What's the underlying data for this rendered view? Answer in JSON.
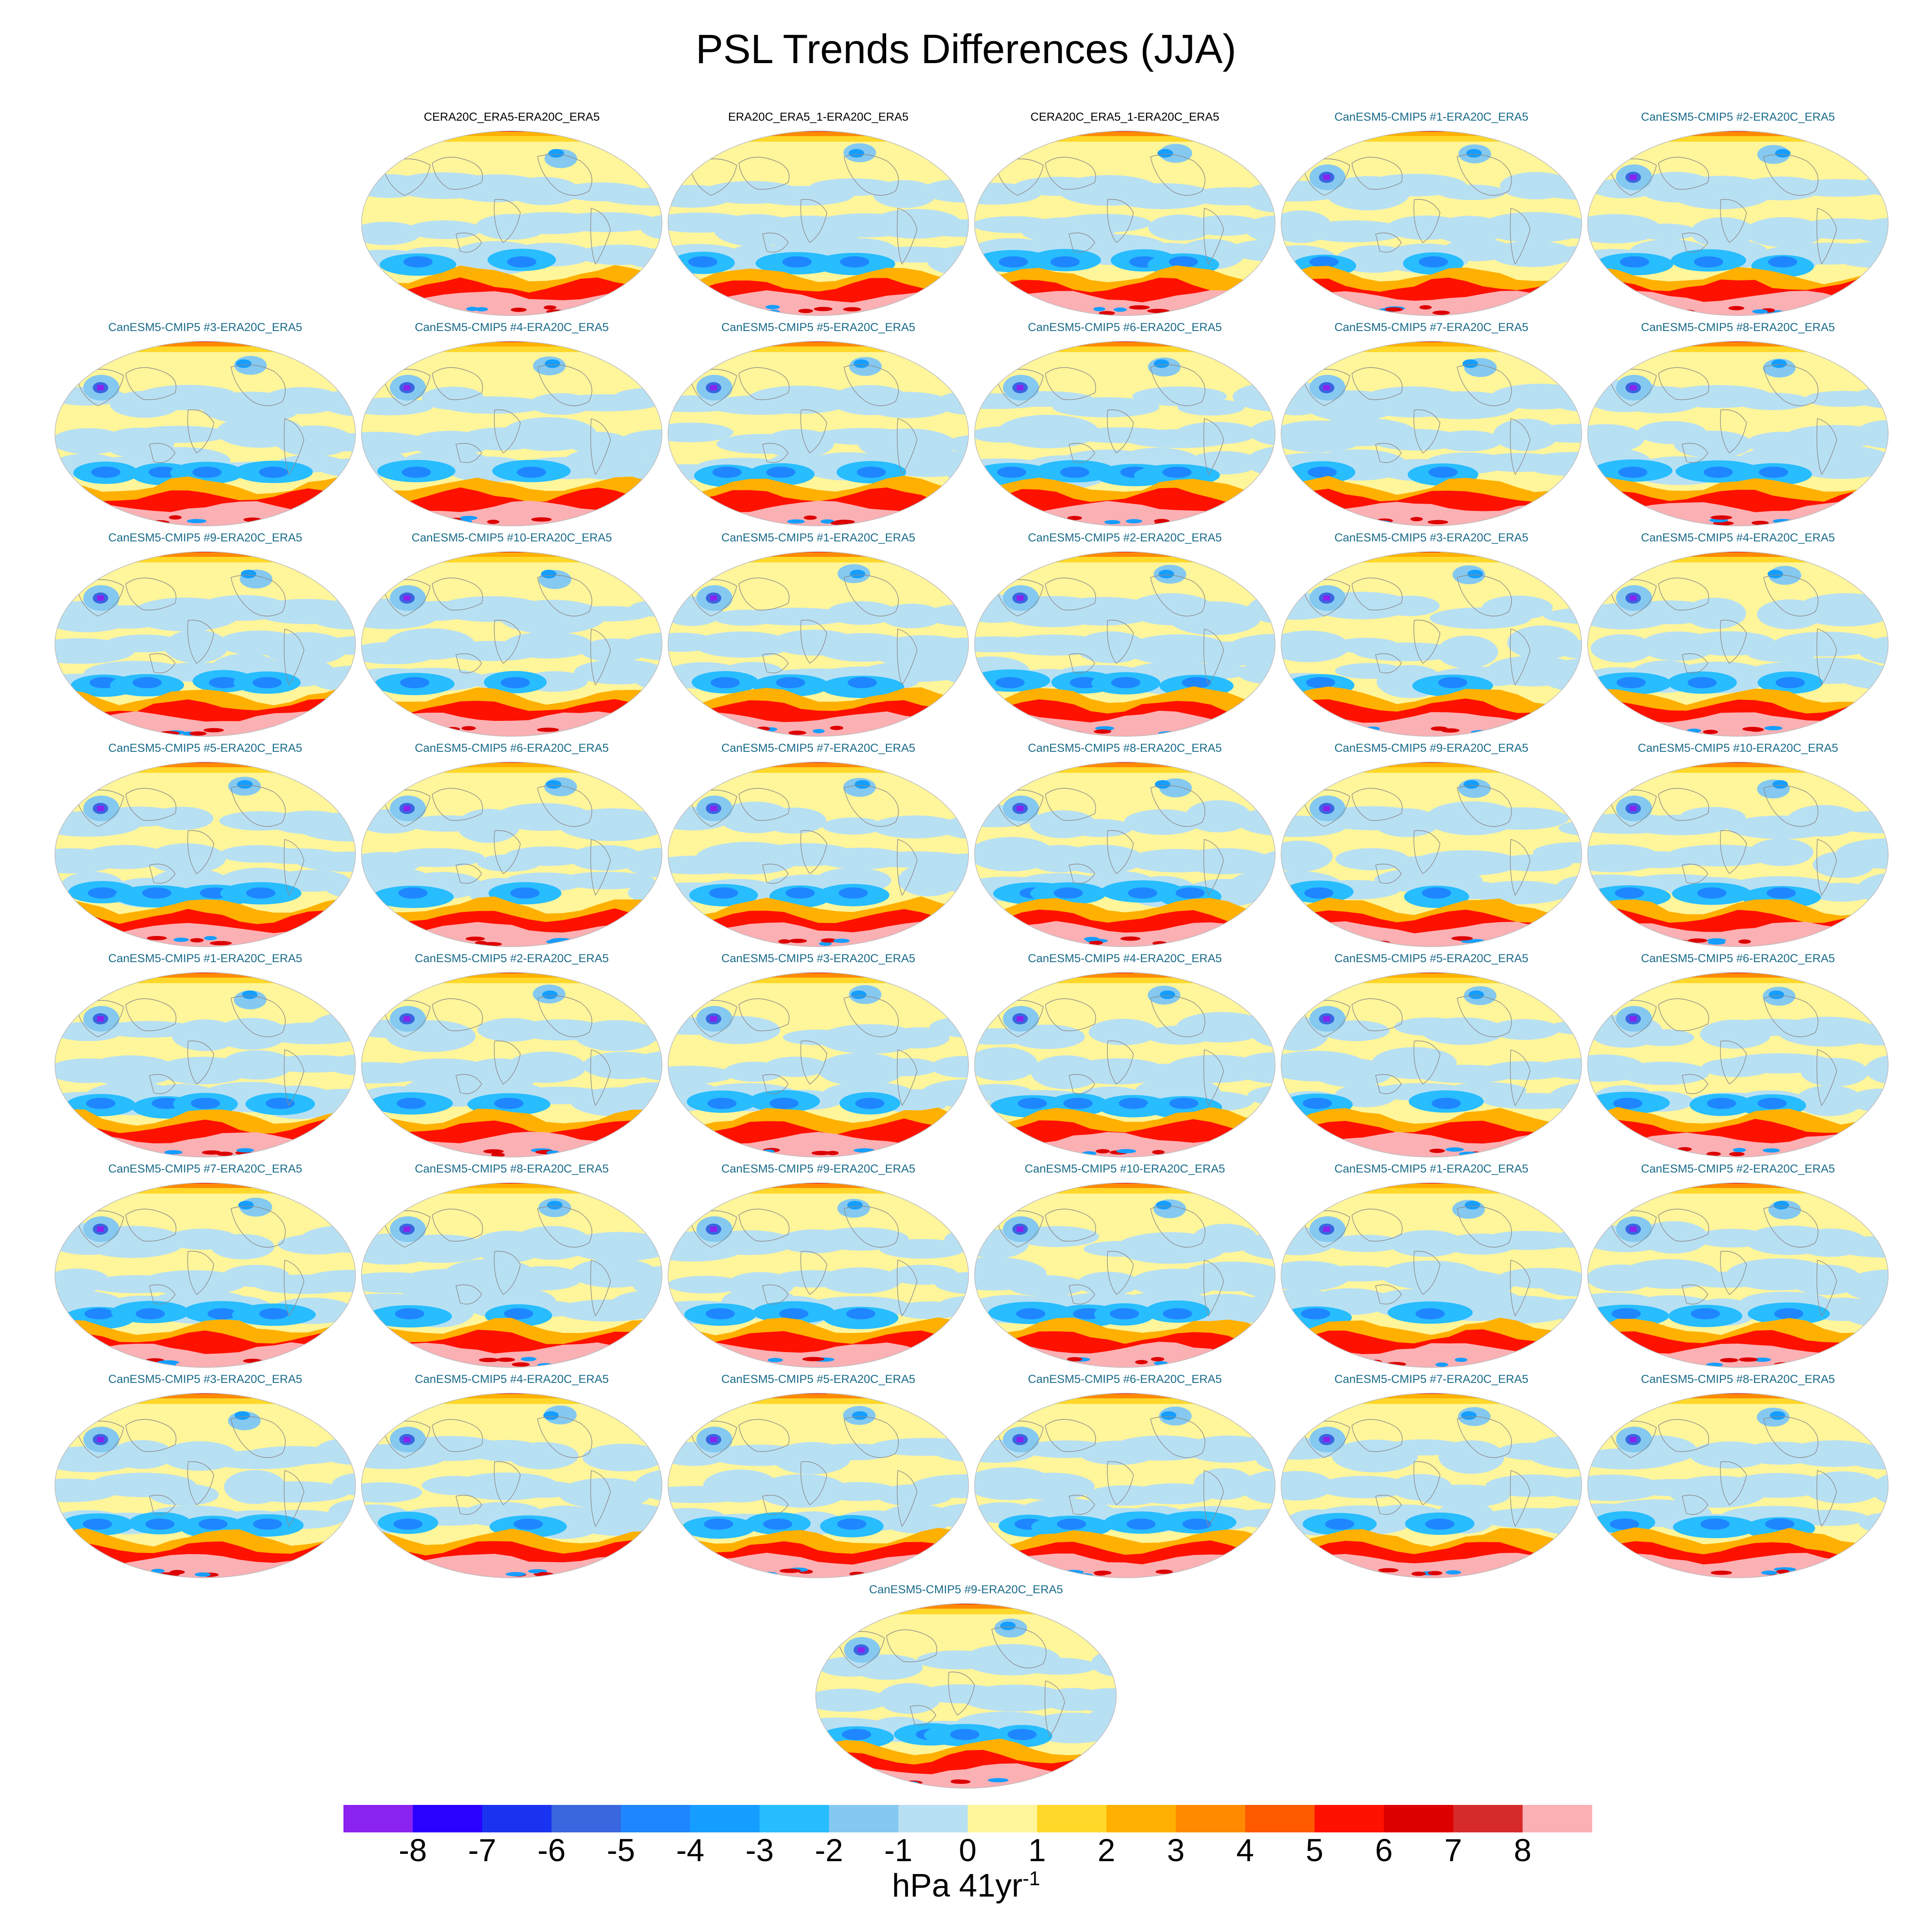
{
  "title": "PSL Trends Differences (JJA)",
  "colors": {
    "obs_title": "#000000",
    "model_title": "#1a6b8a",
    "land_outline": "#8a8a8a",
    "panel_border": "#bbbbbb"
  },
  "colorbar": {
    "levels": [
      "-8",
      "-7",
      "-6",
      "-5",
      "-4",
      "-3",
      "-2",
      "-1",
      "0",
      "1",
      "2",
      "3",
      "4",
      "5",
      "6",
      "7",
      "8"
    ],
    "colors": [
      "#8a22f0",
      "#2a00ff",
      "#1a33f0",
      "#3a66e0",
      "#1e86ff",
      "#159eff",
      "#27bdff",
      "#85c9f0",
      "#b8e0f3",
      "#fff59a",
      "#ffd82a",
      "#ffb000",
      "#ff8a00",
      "#ff5a00",
      "#ff1100",
      "#dd0000",
      "#d62a2a",
      "#fbb0b4"
    ],
    "units_main": "hPa 41yr",
    "units_sup": "-1"
  },
  "chart_data": {
    "type": "heatmap",
    "title": "PSL Trends Differences (JJA)",
    "colorbar_label": "hPa 41yr-1",
    "colorbar_range": [
      -8,
      8
    ],
    "panels": [
      {
        "title": "CERA20C_ERA5-ERA20C_ERA5",
        "kind": "obs",
        "variant": 0
      },
      {
        "title": "ERA20C_ERA5_1-ERA20C_ERA5",
        "kind": "obs",
        "variant": 1
      },
      {
        "title": "CERA20C_ERA5_1-ERA20C_ERA5",
        "kind": "obs",
        "variant": 2
      },
      {
        "title": "CanESM5-CMIP5 #1-ERA20C_ERA5",
        "kind": "model",
        "variant": 3
      },
      {
        "title": "CanESM5-CMIP5 #2-ERA20C_ERA5",
        "kind": "model",
        "variant": 4
      },
      {
        "title": "CanESM5-CMIP5 #3-ERA20C_ERA5",
        "kind": "model",
        "variant": 5
      },
      {
        "title": "CanESM5-CMIP5 #4-ERA20C_ERA5",
        "kind": "model",
        "variant": 6
      },
      {
        "title": "CanESM5-CMIP5 #5-ERA20C_ERA5",
        "kind": "model",
        "variant": 7
      },
      {
        "title": "CanESM5-CMIP5 #6-ERA20C_ERA5",
        "kind": "model",
        "variant": 8
      },
      {
        "title": "CanESM5-CMIP5 #7-ERA20C_ERA5",
        "kind": "model",
        "variant": 9
      },
      {
        "title": "CanESM5-CMIP5 #8-ERA20C_ERA5",
        "kind": "model",
        "variant": 10
      },
      {
        "title": "CanESM5-CMIP5 #9-ERA20C_ERA5",
        "kind": "model",
        "variant": 11
      },
      {
        "title": "CanESM5-CMIP5 #10-ERA20C_ERA5",
        "kind": "model",
        "variant": 12
      },
      {
        "title": "CanESM5-CMIP5 #1-ERA20C_ERA5",
        "kind": "model",
        "variant": 13
      },
      {
        "title": "CanESM5-CMIP5 #2-ERA20C_ERA5",
        "kind": "model",
        "variant": 14
      },
      {
        "title": "CanESM5-CMIP5 #3-ERA20C_ERA5",
        "kind": "model",
        "variant": 15
      },
      {
        "title": "CanESM5-CMIP5 #4-ERA20C_ERA5",
        "kind": "model",
        "variant": 16
      },
      {
        "title": "CanESM5-CMIP5 #5-ERA20C_ERA5",
        "kind": "model",
        "variant": 17
      },
      {
        "title": "CanESM5-CMIP5 #6-ERA20C_ERA5",
        "kind": "model",
        "variant": 18
      },
      {
        "title": "CanESM5-CMIP5 #7-ERA20C_ERA5",
        "kind": "model",
        "variant": 19
      },
      {
        "title": "CanESM5-CMIP5 #8-ERA20C_ERA5",
        "kind": "model",
        "variant": 20
      },
      {
        "title": "CanESM5-CMIP5 #9-ERA20C_ERA5",
        "kind": "model",
        "variant": 21
      },
      {
        "title": "CanESM5-CMIP5 #10-ERA20C_ERA5",
        "kind": "model",
        "variant": 22
      },
      {
        "title": "CanESM5-CMIP5 #1-ERA20C_ERA5",
        "kind": "model",
        "variant": 23
      },
      {
        "title": "CanESM5-CMIP5 #2-ERA20C_ERA5",
        "kind": "model",
        "variant": 24
      },
      {
        "title": "CanESM5-CMIP5 #3-ERA20C_ERA5",
        "kind": "model",
        "variant": 25
      },
      {
        "title": "CanESM5-CMIP5 #4-ERA20C_ERA5",
        "kind": "model",
        "variant": 26
      },
      {
        "title": "CanESM5-CMIP5 #5-ERA20C_ERA5",
        "kind": "model",
        "variant": 27
      },
      {
        "title": "CanESM5-CMIP5 #6-ERA20C_ERA5",
        "kind": "model",
        "variant": 28
      },
      {
        "title": "CanESM5-CMIP5 #7-ERA20C_ERA5",
        "kind": "model",
        "variant": 29
      },
      {
        "title": "CanESM5-CMIP5 #8-ERA20C_ERA5",
        "kind": "model",
        "variant": 30
      },
      {
        "title": "CanESM5-CMIP5 #9-ERA20C_ERA5",
        "kind": "model",
        "variant": 31
      },
      {
        "title": "CanESM5-CMIP5 #10-ERA20C_ERA5",
        "kind": "model",
        "variant": 32
      },
      {
        "title": "CanESM5-CMIP5 #1-ERA20C_ERA5",
        "kind": "model",
        "variant": 33
      },
      {
        "title": "CanESM5-CMIP5 #2-ERA20C_ERA5",
        "kind": "model",
        "variant": 34
      },
      {
        "title": "CanESM5-CMIP5 #3-ERA20C_ERA5",
        "kind": "model",
        "variant": 35
      },
      {
        "title": "CanESM5-CMIP5 #4-ERA20C_ERA5",
        "kind": "model",
        "variant": 36
      },
      {
        "title": "CanESM5-CMIP5 #5-ERA20C_ERA5",
        "kind": "model",
        "variant": 37
      },
      {
        "title": "CanESM5-CMIP5 #6-ERA20C_ERA5",
        "kind": "model",
        "variant": 38
      },
      {
        "title": "CanESM5-CMIP5 #7-ERA20C_ERA5",
        "kind": "model",
        "variant": 39
      },
      {
        "title": "CanESM5-CMIP5 #8-ERA20C_ERA5",
        "kind": "model",
        "variant": 40
      },
      {
        "title": "CanESM5-CMIP5 #9-ERA20C_ERA5",
        "kind": "model",
        "variant": 41
      }
    ]
  }
}
